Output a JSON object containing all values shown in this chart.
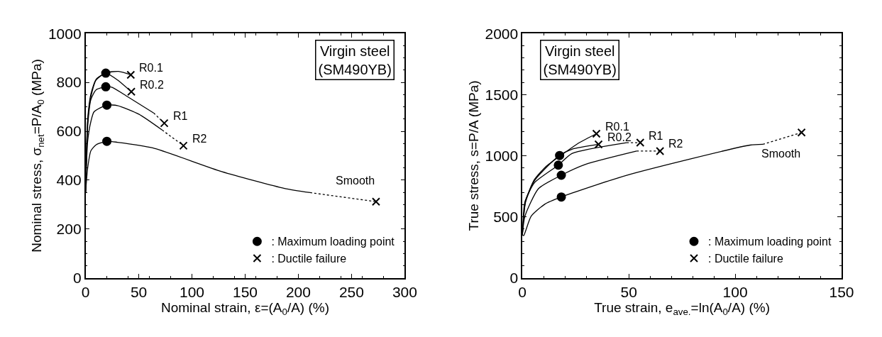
{
  "chart_data": [
    {
      "type": "line",
      "xlabel": "Nominal strain, ε=(A$_{0}$/A) (%)",
      "ylabel": "Nominal stress, σ$_{net}$=P/A$_{0}$ (MPa)",
      "xlim": [
        0,
        300
      ],
      "xticks": [
        0,
        50,
        100,
        150,
        200,
        250,
        300
      ],
      "ylim": [
        0,
        1000
      ],
      "yticks": [
        0,
        200,
        400,
        600,
        800,
        1000
      ],
      "legend": "bottom right",
      "annotations": [
        "Virgin steel\n(SM490YB)",
        {
          "text": "R0.1",
          "x": 42.5,
          "y": 831
        },
        {
          "text": "R0.2",
          "x": 43,
          "y": 762
        },
        {
          "text": "R1",
          "x": 74,
          "y": 633
        },
        {
          "text": "R2",
          "x": 92,
          "y": 541
        },
        {
          "text": "Smooth",
          "x": 273,
          "y": 312
        }
      ],
      "series": [
        {
          "color": "#000000",
          "line_style": "solid",
          "x": [
            0,
            2,
            5,
            10,
            20,
            31,
            42.5
          ],
          "values": [
            350,
            650,
            753,
            813,
            840,
            845,
            831
          ]
        },
        {
          "type": "line",
          "color": "#000000",
          "line_style": "solid",
          "x": [
            0,
            2,
            5,
            10,
            19,
            30,
            43
          ],
          "values": [
            350,
            640,
            740,
            810,
            838,
            810,
            762
          ]
        },
        {
          "type": "line",
          "color": "#000000",
          "line_style": "solid",
          "x": [
            0,
            2,
            5,
            10,
            19,
            25,
            40,
            64
          ],
          "values": [
            350,
            620,
            730,
            770,
            782,
            780,
            740,
            675
          ]
        },
        {
          "type": "line",
          "color": "#000000",
          "line_style": "dotted",
          "x": [
            64,
            74
          ],
          "values": [
            675,
            633
          ]
        },
        {
          "type": "line",
          "color": "#000000",
          "line_style": "solid",
          "x": [
            0,
            2,
            5,
            8,
            20,
            30,
            50,
            72
          ],
          "values": [
            350,
            560,
            640,
            680,
            707,
            705,
            670,
            605
          ]
        },
        {
          "type": "line",
          "color": "#000000",
          "line_style": "dotted",
          "x": [
            72,
            92
          ],
          "values": [
            605,
            541
          ]
        },
        {
          "type": "line",
          "color": "#000000",
          "line_style": "solid",
          "x": [
            0,
            2,
            5,
            10,
            20,
            30,
            63,
            128,
            187,
            211
          ],
          "values": [
            350,
            450,
            520,
            545,
            559,
            555,
            532,
            435,
            366,
            349
          ]
        },
        {
          "type": "line",
          "color": "#000000",
          "line_style": "dotted",
          "x": [
            211,
            273
          ],
          "values": [
            349,
            312
          ]
        },
        {
          "type": "scatter",
          "name": ": Maximum loading point",
          "color": "#000000",
          "marker": "circle",
          "x": [
            19,
            19,
            20,
            20
          ],
          "values": [
            838,
            782,
            707,
            559
          ]
        },
        {
          "type": "scatter",
          "name": ": Ductile failure",
          "color": "#000000",
          "marker": "cross",
          "x": [
            42.5,
            43,
            74,
            92,
            273
          ],
          "values": [
            831,
            762,
            633,
            541,
            312
          ]
        }
      ]
    },
    {
      "type": "line",
      "xlabel": "True strain, e$_{ave.}$=ln(A$_{0}$/A) (%)",
      "ylabel": "True stress, s=P/A (MPa)",
      "xlim": [
        0,
        150
      ],
      "xticks": [
        0,
        50,
        100,
        150
      ],
      "ylim": [
        0,
        2000
      ],
      "yticks": [
        0,
        500,
        1000,
        1500,
        2000
      ],
      "legend": "bottom right",
      "annotations": [
        "Virgin steel\n(SM490YB)",
        {
          "text": "R0.1",
          "x": 34.8,
          "y": 1180
        },
        {
          "text": "R0.2",
          "x": 35.8,
          "y": 1093
        },
        {
          "text": "R1",
          "x": 55.4,
          "y": 1107
        },
        {
          "text": "R2",
          "x": 64.7,
          "y": 1038
        },
        {
          "text": "Smooth",
          "x": 131.2,
          "y": 1190
        }
      ],
      "series": [
        {
          "type": "line",
          "color": "#000000",
          "line_style": "solid",
          "x": [
            0,
            1.5,
            5.5,
            11,
            18.1,
            26.8,
            34.8
          ],
          "values": [
            350,
            630,
            800,
            910,
            1002,
            1107,
            1180
          ]
        },
        {
          "type": "line",
          "color": "#000000",
          "line_style": "solid",
          "x": [
            0,
            1.5,
            5.5,
            11,
            17.5,
            23.3,
            35.8
          ],
          "values": [
            350,
            620,
            790,
            900,
            1002,
            1053,
            1093
          ]
        },
        {
          "type": "line",
          "color": "#000000",
          "line_style": "solid",
          "x": [
            0,
            1.2,
            5.8,
            16.9,
            23.3,
            49
          ],
          "values": [
            350,
            623,
            781,
            923,
            1018,
            1107
          ]
        },
        {
          "type": "line",
          "color": "#000000",
          "line_style": "dotted",
          "x": [
            49,
            55.4
          ],
          "values": [
            1107,
            1107
          ]
        },
        {
          "type": "line",
          "color": "#000000",
          "line_style": "solid",
          "x": [
            0,
            1.2,
            7.6,
            18.3,
            29.7,
            53.7
          ],
          "values": [
            350,
            504,
            731,
            840,
            929,
            1038
          ]
        },
        {
          "type": "line",
          "color": "#000000",
          "line_style": "dotted",
          "x": [
            53.7,
            64.7
          ],
          "values": [
            1038,
            1038
          ]
        },
        {
          "type": "line",
          "color": "#000000",
          "line_style": "solid",
          "x": [
            0,
            0.6,
            4.1,
            10.5,
            18.3,
            49,
            107,
            113
          ],
          "values": [
            350,
            346,
            504,
            603,
            662,
            840,
            1087,
            1093
          ]
        },
        {
          "type": "line",
          "color": "#000000",
          "line_style": "dotted",
          "x": [
            113,
            131.2
          ],
          "values": [
            1093,
            1190
          ]
        },
        {
          "type": "scatter",
          "name": ": Maximum loading point",
          "color": "#000000",
          "marker": "circle",
          "x": [
            17.5,
            16.9,
            18.3,
            18.3
          ],
          "values": [
            1002,
            923,
            840,
            662
          ]
        },
        {
          "type": "scatter",
          "name": ": Ductile failure",
          "color": "#000000",
          "marker": "cross",
          "x": [
            34.8,
            35.8,
            55.4,
            64.7,
            131.2
          ],
          "values": [
            1180,
            1093,
            1107,
            1038,
            1190
          ]
        }
      ]
    }
  ]
}
